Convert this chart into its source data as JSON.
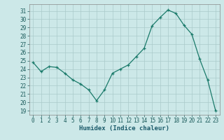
{
  "x": [
    0,
    1,
    2,
    3,
    4,
    5,
    6,
    7,
    8,
    9,
    10,
    11,
    12,
    13,
    14,
    15,
    16,
    17,
    18,
    19,
    20,
    21,
    22,
    23
  ],
  "y": [
    24.8,
    23.7,
    24.3,
    24.2,
    23.5,
    22.7,
    22.2,
    21.5,
    20.2,
    21.5,
    23.5,
    24.0,
    24.5,
    25.5,
    26.5,
    29.2,
    30.2,
    31.1,
    30.7,
    29.3,
    28.2,
    25.2,
    22.7,
    19.0
  ],
  "line_color": "#1a7a6a",
  "marker": "+",
  "bg_color": "#cce8e8",
  "grid_color": "#aacaca",
  "xlabel": "Humidex (Indice chaleur)",
  "xlim": [
    -0.5,
    23.5
  ],
  "ylim": [
    18.5,
    31.8
  ],
  "yticks": [
    19,
    20,
    21,
    22,
    23,
    24,
    25,
    26,
    27,
    28,
    29,
    30,
    31
  ],
  "xticks": [
    0,
    1,
    2,
    3,
    4,
    5,
    6,
    7,
    8,
    9,
    10,
    11,
    12,
    13,
    14,
    15,
    16,
    17,
    18,
    19,
    20,
    21,
    22,
    23
  ]
}
